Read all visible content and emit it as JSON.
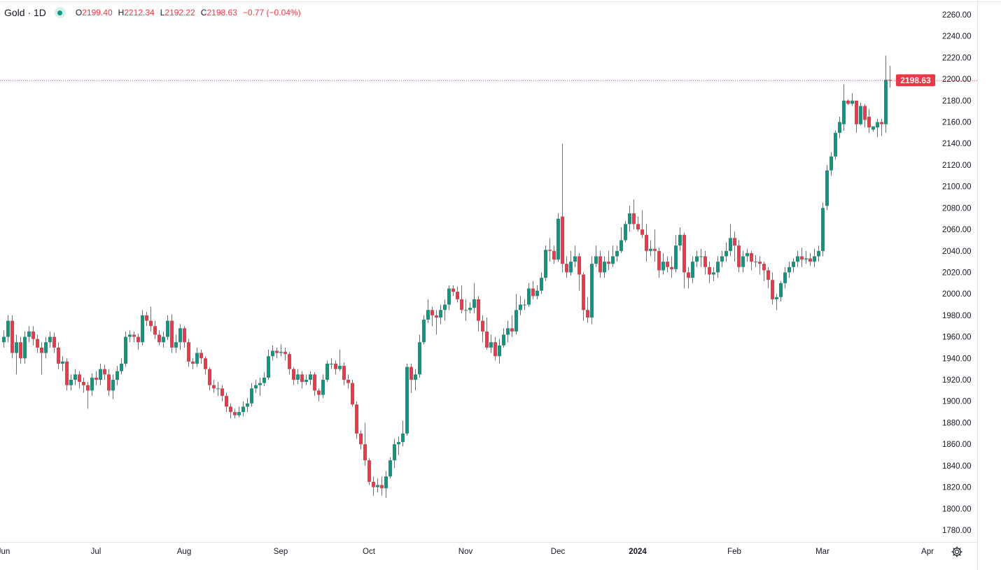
{
  "header": {
    "symbol": "Gold · 1D",
    "status_color": "#089981",
    "open_label": "O",
    "open": "2199.40",
    "high_label": "H",
    "high": "2212.34",
    "low_label": "L",
    "low": "2192.22",
    "close_label": "C",
    "close": "2198.63",
    "change": "−0.77 (−0.04%)"
  },
  "chart_data": {
    "type": "candlestick",
    "title": "Gold · 1D",
    "colors": {
      "up": "#089981",
      "down": "#f23645"
    },
    "last_price": 2198.63,
    "last_price_label": "2198.63",
    "ylim": [
      1770,
      2268
    ],
    "y_ticks": [
      "2260.00",
      "2240.00",
      "2220.00",
      "2200.00",
      "2180.00",
      "2160.00",
      "2140.00",
      "2120.00",
      "2100.00",
      "2080.00",
      "2060.00",
      "2040.00",
      "2020.00",
      "2000.00",
      "1980.00",
      "1960.00",
      "1940.00",
      "1920.00",
      "1900.00",
      "1880.00",
      "1860.00",
      "1840.00",
      "1820.00",
      "1800.00",
      "1780.00"
    ],
    "x_ticks": [
      {
        "label": "Jun",
        "index": 0
      },
      {
        "label": "Jul",
        "index": 22
      },
      {
        "label": "Aug",
        "index": 43
      },
      {
        "label": "Sep",
        "index": 66
      },
      {
        "label": "Oct",
        "index": 87
      },
      {
        "label": "Nov",
        "index": 110
      },
      {
        "label": "Dec",
        "index": 132
      },
      {
        "label": "2024",
        "index": 151,
        "bold": true
      },
      {
        "label": "Feb",
        "index": 174
      },
      {
        "label": "Mar",
        "index": 195
      },
      {
        "label": "Apr",
        "index": 220
      }
    ],
    "candles_ohlc": [
      [
        1955,
        1966,
        1950,
        1960
      ],
      [
        1960,
        1980,
        1955,
        1975
      ],
      [
        1975,
        1980,
        1940,
        1945
      ],
      [
        1945,
        1962,
        1925,
        1955
      ],
      [
        1955,
        1960,
        1935,
        1940
      ],
      [
        1940,
        1965,
        1935,
        1960
      ],
      [
        1960,
        1970,
        1955,
        1965
      ],
      [
        1965,
        1970,
        1952,
        1958
      ],
      [
        1958,
        1962,
        1945,
        1950
      ],
      [
        1950,
        1955,
        1925,
        1945
      ],
      [
        1945,
        1960,
        1940,
        1955
      ],
      [
        1955,
        1965,
        1950,
        1960
      ],
      [
        1960,
        1964,
        1945,
        1950
      ],
      [
        1950,
        1955,
        1930,
        1935
      ],
      [
        1935,
        1942,
        1928,
        1937
      ],
      [
        1937,
        1940,
        1910,
        1915
      ],
      [
        1915,
        1925,
        1910,
        1920
      ],
      [
        1920,
        1930,
        1915,
        1925
      ],
      [
        1925,
        1928,
        1912,
        1918
      ],
      [
        1918,
        1922,
        1908,
        1915
      ],
      [
        1915,
        1918,
        1893,
        1910
      ],
      [
        1910,
        1926,
        1905,
        1922
      ],
      [
        1922,
        1928,
        1915,
        1920
      ],
      [
        1920,
        1935,
        1915,
        1930
      ],
      [
        1930,
        1934,
        1920,
        1925
      ],
      [
        1925,
        1930,
        1905,
        1910
      ],
      [
        1910,
        1925,
        1902,
        1920
      ],
      [
        1920,
        1933,
        1915,
        1928
      ],
      [
        1928,
        1940,
        1925,
        1935
      ],
      [
        1935,
        1965,
        1932,
        1960
      ],
      [
        1960,
        1966,
        1955,
        1962
      ],
      [
        1962,
        1965,
        1955,
        1960
      ],
      [
        1960,
        1963,
        1948,
        1955
      ],
      [
        1955,
        1985,
        1952,
        1980
      ],
      [
        1980,
        1983,
        1970,
        1975
      ],
      [
        1975,
        1988,
        1965,
        1970
      ],
      [
        1970,
        1975,
        1958,
        1962
      ],
      [
        1962,
        1966,
        1952,
        1955
      ],
      [
        1955,
        1965,
        1950,
        1960
      ],
      [
        1960,
        1980,
        1957,
        1975
      ],
      [
        1975,
        1981,
        1945,
        1950
      ],
      [
        1950,
        1962,
        1945,
        1955
      ],
      [
        1955,
        1972,
        1948,
        1968
      ],
      [
        1968,
        1970,
        1950,
        1955
      ],
      [
        1955,
        1958,
        1932,
        1937
      ],
      [
        1937,
        1940,
        1930,
        1935
      ],
      [
        1935,
        1950,
        1932,
        1945
      ],
      [
        1945,
        1948,
        1935,
        1940
      ],
      [
        1940,
        1942,
        1925,
        1930
      ],
      [
        1930,
        1932,
        1910,
        1915
      ],
      [
        1915,
        1920,
        1908,
        1912
      ],
      [
        1912,
        1918,
        1905,
        1912
      ],
      [
        1912,
        1915,
        1900,
        1905
      ],
      [
        1905,
        1908,
        1890,
        1895
      ],
      [
        1895,
        1898,
        1884,
        1890
      ],
      [
        1890,
        1893,
        1884,
        1887
      ],
      [
        1887,
        1895,
        1885,
        1890
      ],
      [
        1890,
        1900,
        1886,
        1895
      ],
      [
        1895,
        1903,
        1890,
        1898
      ],
      [
        1898,
        1917,
        1895,
        1912
      ],
      [
        1912,
        1920,
        1908,
        1915
      ],
      [
        1915,
        1922,
        1905,
        1917
      ],
      [
        1917,
        1927,
        1914,
        1922
      ],
      [
        1922,
        1948,
        1920,
        1942
      ],
      [
        1942,
        1952,
        1938,
        1947
      ],
      [
        1947,
        1950,
        1940,
        1945
      ],
      [
        1945,
        1953,
        1942,
        1946
      ],
      [
        1946,
        1950,
        1938,
        1944
      ],
      [
        1944,
        1946,
        1925,
        1930
      ],
      [
        1930,
        1932,
        1915,
        1920
      ],
      [
        1920,
        1930,
        1916,
        1925
      ],
      [
        1925,
        1928,
        1912,
        1918
      ],
      [
        1918,
        1925,
        1915,
        1920
      ],
      [
        1920,
        1928,
        1915,
        1925
      ],
      [
        1925,
        1927,
        1905,
        1910
      ],
      [
        1910,
        1912,
        1900,
        1906
      ],
      [
        1906,
        1925,
        1903,
        1920
      ],
      [
        1920,
        1938,
        1918,
        1935
      ],
      [
        1935,
        1940,
        1930,
        1935
      ],
      [
        1935,
        1938,
        1925,
        1930
      ],
      [
        1930,
        1948,
        1928,
        1933
      ],
      [
        1933,
        1936,
        1915,
        1920
      ],
      [
        1920,
        1925,
        1912,
        1917
      ],
      [
        1917,
        1920,
        1895,
        1897
      ],
      [
        1897,
        1900,
        1865,
        1870
      ],
      [
        1870,
        1873,
        1855,
        1860
      ],
      [
        1860,
        1880,
        1840,
        1845
      ],
      [
        1845,
        1847,
        1822,
        1825
      ],
      [
        1825,
        1830,
        1812,
        1820
      ],
      [
        1820,
        1828,
        1815,
        1822
      ],
      [
        1822,
        1830,
        1812,
        1819
      ],
      [
        1819,
        1835,
        1810,
        1830
      ],
      [
        1830,
        1848,
        1828,
        1845
      ],
      [
        1845,
        1865,
        1838,
        1860
      ],
      [
        1860,
        1867,
        1850,
        1862
      ],
      [
        1862,
        1882,
        1858,
        1870
      ],
      [
        1870,
        1935,
        1868,
        1932
      ],
      [
        1932,
        1935,
        1908,
        1920
      ],
      [
        1920,
        1930,
        1910,
        1925
      ],
      [
        1925,
        1962,
        1922,
        1955
      ],
      [
        1955,
        1980,
        1953,
        1976
      ],
      [
        1976,
        1995,
        1973,
        1985
      ],
      [
        1985,
        1988,
        1970,
        1980
      ],
      [
        1980,
        1985,
        1962,
        1978
      ],
      [
        1978,
        1990,
        1972,
        1985
      ],
      [
        1985,
        1995,
        1975,
        1990
      ],
      [
        1990,
        2008,
        1985,
        2005
      ],
      [
        2005,
        2008,
        1998,
        2002
      ],
      [
        2002,
        2007,
        1992,
        1995
      ],
      [
        1995,
        2008,
        1982,
        1985
      ],
      [
        1985,
        1995,
        1975,
        1985
      ],
      [
        1985,
        1992,
        1982,
        1987
      ],
      [
        1987,
        2010,
        1982,
        1995
      ],
      [
        1995,
        1998,
        1965,
        1975
      ],
      [
        1975,
        1980,
        1955,
        1965
      ],
      [
        1965,
        1978,
        1948,
        1950
      ],
      [
        1950,
        1962,
        1945,
        1955
      ],
      [
        1955,
        1960,
        1938,
        1942
      ],
      [
        1942,
        1958,
        1935,
        1952
      ],
      [
        1952,
        1968,
        1950,
        1962
      ],
      [
        1962,
        1975,
        1955,
        1968
      ],
      [
        1968,
        1980,
        1960,
        1965
      ],
      [
        1965,
        2000,
        1962,
        1985
      ],
      [
        1985,
        1998,
        1980,
        1990
      ],
      [
        1990,
        1995,
        1985,
        1990
      ],
      [
        1990,
        2010,
        1988,
        2005
      ],
      [
        2005,
        2012,
        1995,
        1998
      ],
      [
        1998,
        2008,
        1995,
        2003
      ],
      [
        2003,
        2020,
        2000,
        2015
      ],
      [
        2015,
        2045,
        2012,
        2041
      ],
      [
        2041,
        2052,
        2030,
        2040
      ],
      [
        2040,
        2045,
        2028,
        2032
      ],
      [
        2032,
        2075,
        2030,
        2070
      ],
      [
        2072,
        2140,
        2020,
        2028
      ],
      [
        2028,
        2035,
        2015,
        2020
      ],
      [
        2020,
        2040,
        2017,
        2030
      ],
      [
        2030,
        2045,
        2025,
        2035
      ],
      [
        2035,
        2038,
        2003,
        2018
      ],
      [
        2018,
        2020,
        1975,
        1985
      ],
      [
        1985,
        1997,
        1973,
        1978
      ],
      [
        1978,
        2035,
        1972,
        2028
      ],
      [
        2028,
        2045,
        2025,
        2035
      ],
      [
        2035,
        2040,
        2015,
        2020
      ],
      [
        2020,
        2035,
        2015,
        2030
      ],
      [
        2030,
        2040,
        2022,
        2028
      ],
      [
        2028,
        2045,
        2025,
        2035
      ],
      [
        2035,
        2045,
        2030,
        2040
      ],
      [
        2040,
        2062,
        2038,
        2050
      ],
      [
        2050,
        2068,
        2048,
        2065
      ],
      [
        2065,
        2082,
        2058,
        2075
      ],
      [
        2075,
        2088,
        2060,
        2065
      ],
      [
        2065,
        2072,
        2058,
        2060
      ],
      [
        2060,
        2078,
        2052,
        2055
      ],
      [
        2055,
        2065,
        2030,
        2040
      ],
      [
        2040,
        2050,
        2035,
        2042
      ],
      [
        2042,
        2060,
        2030,
        2040
      ],
      [
        2040,
        2043,
        2015,
        2022
      ],
      [
        2022,
        2038,
        2018,
        2030
      ],
      [
        2030,
        2035,
        2020,
        2025
      ],
      [
        2025,
        2035,
        2015,
        2023
      ],
      [
        2023,
        2055,
        2020,
        2045
      ],
      [
        2045,
        2062,
        2040,
        2055
      ],
      [
        2055,
        2057,
        2005,
        2020
      ],
      [
        2020,
        2025,
        2005,
        2015
      ],
      [
        2015,
        2035,
        2010,
        2030
      ],
      [
        2030,
        2040,
        2025,
        2035
      ],
      [
        2035,
        2042,
        2025,
        2035
      ],
      [
        2035,
        2040,
        2018,
        2025
      ],
      [
        2025,
        2030,
        2010,
        2018
      ],
      [
        2018,
        2025,
        2012,
        2020
      ],
      [
        2020,
        2035,
        2015,
        2030
      ],
      [
        2030,
        2040,
        2025,
        2035
      ],
      [
        2035,
        2048,
        2030,
        2040
      ],
      [
        2040,
        2065,
        2035,
        2052
      ],
      [
        2052,
        2058,
        2030,
        2045
      ],
      [
        2045,
        2050,
        2020,
        2025
      ],
      [
        2025,
        2040,
        2020,
        2035
      ],
      [
        2035,
        2042,
        2030,
        2038
      ],
      [
        2038,
        2040,
        2022,
        2030
      ],
      [
        2030,
        2036,
        2025,
        2030
      ],
      [
        2030,
        2035,
        2018,
        2028
      ],
      [
        2028,
        2030,
        2012,
        2022
      ],
      [
        2022,
        2025,
        2005,
        2013
      ],
      [
        2013,
        2020,
        1990,
        1995
      ],
      [
        1995,
        2000,
        1985,
        1997
      ],
      [
        1997,
        2012,
        1993,
        2010
      ],
      [
        2010,
        2025,
        2005,
        2020
      ],
      [
        2020,
        2030,
        2015,
        2025
      ],
      [
        2025,
        2033,
        2020,
        2030
      ],
      [
        2030,
        2040,
        2025,
        2035
      ],
      [
        2035,
        2043,
        2025,
        2032
      ],
      [
        2032,
        2040,
        2028,
        2033
      ],
      [
        2033,
        2038,
        2026,
        2030
      ],
      [
        2030,
        2042,
        2025,
        2035
      ],
      [
        2035,
        2045,
        2030,
        2040
      ],
      [
        2040,
        2085,
        2035,
        2080
      ],
      [
        2082,
        2120,
        2078,
        2115
      ],
      [
        2115,
        2132,
        2110,
        2128
      ],
      [
        2128,
        2152,
        2125,
        2150
      ],
      [
        2150,
        2165,
        2145,
        2160
      ],
      [
        2158,
        2195,
        2152,
        2180
      ],
      [
        2180,
        2181,
        2176,
        2177
      ],
      [
        2177,
        2187,
        2175,
        2180
      ],
      [
        2180,
        2180,
        2150,
        2158
      ],
      [
        2158,
        2178,
        2157,
        2175
      ],
      [
        2175,
        2177,
        2155,
        2162
      ],
      [
        2165,
        2172,
        2150,
        2155
      ],
      [
        2153,
        2156,
        2151,
        2156
      ],
      [
        2155,
        2163,
        2146,
        2160
      ],
      [
        2160,
        2163,
        2147,
        2158
      ],
      [
        2158,
        2222,
        2150,
        2199.4
      ],
      [
        2199.4,
        2212.34,
        2192.22,
        2198.63
      ]
    ]
  },
  "icons": {
    "settings": "gear-icon"
  }
}
